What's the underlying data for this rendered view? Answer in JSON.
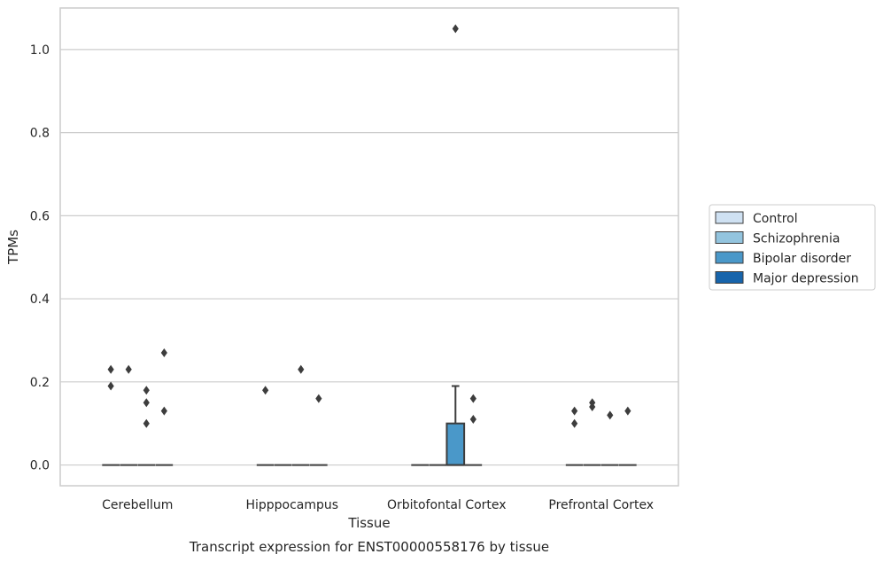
{
  "chart_data": {
    "type": "boxplot",
    "title": "Transcript expression for ENST00000558176 by tissue",
    "xlabel": "Tissue",
    "ylabel": "TPMs",
    "ylim": [
      -0.05,
      1.1
    ],
    "yticks": [
      0.0,
      0.2,
      0.4,
      0.6,
      0.8,
      1.0
    ],
    "ytick_labels": [
      "0.0",
      "0.2",
      "0.4",
      "0.6",
      "0.8",
      "1.0"
    ],
    "grid": true,
    "legend_position": "right",
    "categories": [
      "Cerebellum",
      "Hipppocampus",
      "Orbitofontal Cortex",
      "Prefrontal Cortex"
    ],
    "series": [
      {
        "name": "Control",
        "color": "#cfe1f2",
        "boxes": [
          {
            "q1": 0,
            "median": 0,
            "q3": 0,
            "whisker_low": 0,
            "whisker_high": 0,
            "outliers": [
              0.19,
              0.23
            ]
          },
          {
            "q1": 0,
            "median": 0,
            "q3": 0,
            "whisker_low": 0,
            "whisker_high": 0,
            "outliers": [
              0.18
            ]
          },
          {
            "q1": 0,
            "median": 0,
            "q3": 0,
            "whisker_low": 0,
            "whisker_high": 0,
            "outliers": []
          },
          {
            "q1": 0,
            "median": 0,
            "q3": 0,
            "whisker_low": 0,
            "whisker_high": 0,
            "outliers": [
              0.1,
              0.13
            ]
          }
        ]
      },
      {
        "name": "Schizophrenia",
        "color": "#93c4de",
        "boxes": [
          {
            "q1": 0,
            "median": 0,
            "q3": 0,
            "whisker_low": 0,
            "whisker_high": 0,
            "outliers": [
              0.23
            ]
          },
          {
            "q1": 0,
            "median": 0,
            "q3": 0,
            "whisker_low": 0,
            "whisker_high": 0,
            "outliers": []
          },
          {
            "q1": 0,
            "median": 0,
            "q3": 0,
            "whisker_low": 0,
            "whisker_high": 0,
            "outliers": []
          },
          {
            "q1": 0,
            "median": 0,
            "q3": 0,
            "whisker_low": 0,
            "whisker_high": 0,
            "outliers": [
              0.14,
              0.15
            ]
          }
        ]
      },
      {
        "name": "Bipolar disorder",
        "color": "#4a98c9",
        "boxes": [
          {
            "q1": 0,
            "median": 0,
            "q3": 0,
            "whisker_low": 0,
            "whisker_high": 0,
            "outliers": [
              0.1,
              0.15,
              0.18
            ]
          },
          {
            "q1": 0,
            "median": 0,
            "q3": 0,
            "whisker_low": 0,
            "whisker_high": 0,
            "outliers": [
              0.23
            ]
          },
          {
            "q1": 0,
            "median": 0,
            "q3": 0.1,
            "whisker_low": 0,
            "whisker_high": 0.19,
            "outliers": [
              1.05
            ]
          },
          {
            "q1": 0,
            "median": 0,
            "q3": 0,
            "whisker_low": 0,
            "whisker_high": 0,
            "outliers": [
              0.12
            ]
          }
        ]
      },
      {
        "name": "Major depression",
        "color": "#1764ab",
        "boxes": [
          {
            "q1": 0,
            "median": 0,
            "q3": 0,
            "whisker_low": 0,
            "whisker_high": 0,
            "outliers": [
              0.13,
              0.27
            ]
          },
          {
            "q1": 0,
            "median": 0,
            "q3": 0,
            "whisker_low": 0,
            "whisker_high": 0,
            "outliers": [
              0.16
            ]
          },
          {
            "q1": 0,
            "median": 0,
            "q3": 0,
            "whisker_low": 0,
            "whisker_high": 0,
            "outliers": [
              0.11,
              0.16
            ]
          },
          {
            "q1": 0,
            "median": 0,
            "q3": 0,
            "whisker_low": 0,
            "whisker_high": 0,
            "outliers": [
              0.13
            ]
          }
        ]
      }
    ]
  }
}
